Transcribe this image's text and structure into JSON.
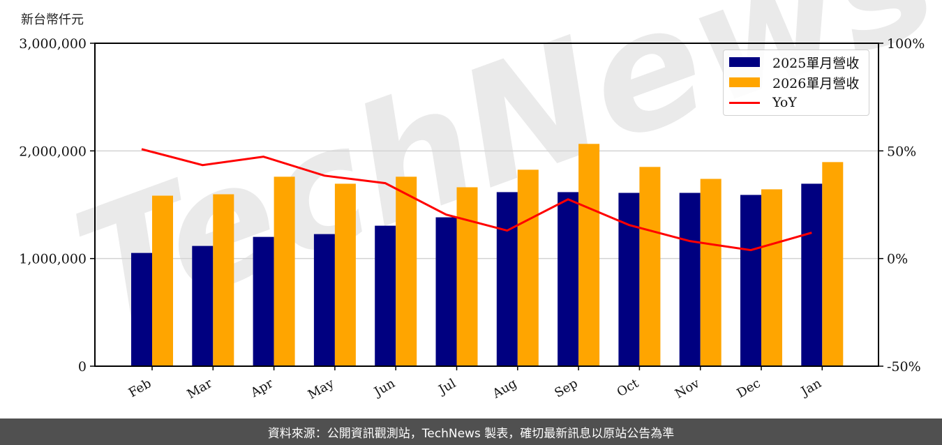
{
  "chart_data": {
    "type": "bar",
    "title": "",
    "unit_label": "新台幣仟元",
    "xlabel": "",
    "ylabel": "新台幣仟元",
    "y2label": "YoY",
    "categories": [
      "Feb",
      "Mar",
      "Apr",
      "May",
      "Jun",
      "Jul",
      "Aug",
      "Sep",
      "Oct",
      "Nov",
      "Dec",
      "Jan"
    ],
    "series": [
      {
        "name": "2025單月營收",
        "type": "bar",
        "axis": "left",
        "color": "#000080",
        "values": [
          1052000,
          1117000,
          1201000,
          1227000,
          1305000,
          1383000,
          1617000,
          1617000,
          1610000,
          1610000,
          1591000,
          1695000
        ]
      },
      {
        "name": "2026單月營收",
        "type": "bar",
        "axis": "left",
        "color": "#FFA500",
        "values": [
          1584000,
          1597000,
          1760000,
          1695000,
          1760000,
          1662000,
          1825000,
          2065000,
          1851000,
          1740000,
          1643000,
          1896000
        ]
      },
      {
        "name": "YoY",
        "type": "line",
        "axis": "right",
        "color": "#FF0000",
        "unit": "%",
        "values": [
          50.8,
          43.4,
          47.3,
          38.5,
          35.0,
          20.4,
          13.0,
          27.5,
          15.6,
          8.1,
          3.9,
          12.0
        ]
      }
    ],
    "ylim": [
      0,
      3000000
    ],
    "y2lim": [
      -50,
      100
    ],
    "yticks": [
      0,
      1000000,
      2000000,
      3000000
    ],
    "ytick_labels": [
      "0",
      "1,000,000",
      "2,000,000",
      "3,000,000"
    ],
    "y2ticks": [
      -50,
      0,
      50,
      100
    ],
    "y2tick_labels": [
      "-50%",
      "0%",
      "50%",
      "100%"
    ],
    "grid": "horizontal",
    "legend_position": "upper right",
    "watermark": "TechNews"
  },
  "legend": {
    "items": [
      {
        "label": "2025單月營收",
        "color": "#000080",
        "kind": "bar"
      },
      {
        "label": "2026單月營收",
        "color": "#FFA500",
        "kind": "bar"
      },
      {
        "label": "YoY",
        "color": "#FF0000",
        "kind": "line"
      }
    ]
  },
  "footer": {
    "text": "資料來源：公開資訊觀測站，TechNews 製表，確切最新訊息以原站公告為準"
  }
}
